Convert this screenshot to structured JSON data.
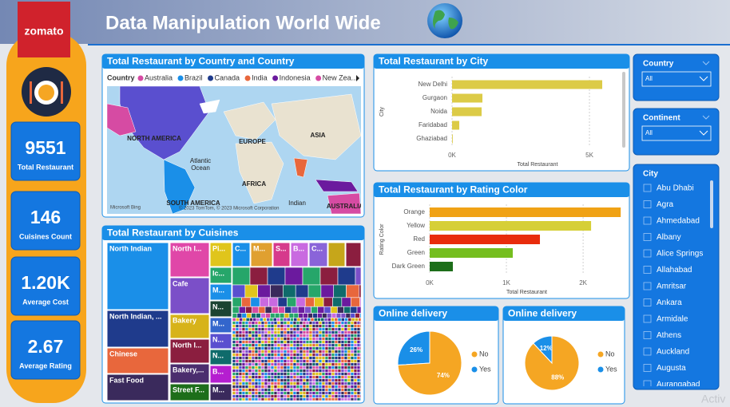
{
  "header": {
    "logo": "zomato",
    "title": "Data Manipulation World Wide"
  },
  "kpis": [
    {
      "value": 9551,
      "label": "Total Restaurant"
    },
    {
      "value": 146,
      "label": "Cuisines Count"
    },
    {
      "value": "1.20K",
      "label": "Average Cost"
    },
    {
      "value": 2.67,
      "label": "Average Rating"
    }
  ],
  "map": {
    "title": "Total Restaurant by Country and Country",
    "legend_title": "Country",
    "legend": [
      {
        "name": "Australia",
        "color": "#d64ba3"
      },
      {
        "name": "Brazil",
        "color": "#1a8fe8"
      },
      {
        "name": "Canada",
        "color": "#1f3b8c"
      },
      {
        "name": "India",
        "color": "#e8673c"
      },
      {
        "name": "Indonesia",
        "color": "#6b1a9e"
      },
      {
        "name": "New Zea...",
        "color": "#d64ba3"
      }
    ],
    "labels": [
      "NORTH AMERICA",
      "EUROPE",
      "ASIA",
      "Atlantic",
      "Ocean",
      "AFRICA",
      "SOUTH AMERICA",
      "Indian",
      "AUSTRALIA"
    ],
    "attribution": [
      "Microsoft Bing",
      "© 2023 TomTom, © 2023 Microsoft Corporation"
    ]
  },
  "treemap": {
    "title": "Total Restaurant by Cuisines",
    "labels": [
      "North Indian",
      "North I...",
      "Pi...",
      "C...",
      "M...",
      "S...",
      "B...",
      "C...",
      "Cafe",
      "Ic...",
      "M...",
      "N...",
      "North Indian, ...",
      "Bakery",
      "M...",
      "North I...",
      "N...",
      "B...",
      "Chinese",
      "Bakery,...",
      "Fast Food",
      "Street F...",
      "M..."
    ]
  },
  "chart_data": [
    {
      "type": "hbar",
      "title": "Total Restaurant by City",
      "categories": [
        "New Delhi",
        "Gurgaon",
        "Noida",
        "Faridabad",
        "Ghaziabad"
      ],
      "values": [
        5465,
        1105,
        1075,
        262,
        25
      ],
      "color": "#dccb47",
      "x_label": "Total Restaurant",
      "y_label": "City",
      "xlim": [
        0,
        6220
      ],
      "xticks": [
        {
          "value": 0,
          "label": "0K"
        },
        {
          "value": 5000,
          "label": "5K"
        }
      ],
      "grid": true
    },
    {
      "type": "hbar",
      "title": "Total Restaurant by Rating Color",
      "categories": [
        "Orange",
        "Yellow",
        "Red",
        "Green",
        "Dark Green"
      ],
      "values": [
        2490,
        2104,
        1437,
        1083,
        302
      ],
      "colors": [
        "#f0a215",
        "#d6cf37",
        "#e82c0c",
        "#75be1f",
        "#1d6e1a"
      ],
      "x_label": "Total Restaurant",
      "y_label": "Rating Color",
      "xlim": [
        0,
        2530
      ],
      "xticks": [
        {
          "value": 0,
          "label": "0K"
        },
        {
          "value": 1000,
          "label": "1K"
        },
        {
          "value": 2000,
          "label": "2K"
        }
      ],
      "grid": true
    },
    {
      "type": "pie",
      "title": "Online delivery",
      "categories": [
        "No",
        "Yes"
      ],
      "values": [
        74,
        26
      ],
      "value_labels": [
        "74%",
        "26%"
      ],
      "colors": [
        "#f5a623",
        "#1a8fe8"
      ]
    },
    {
      "type": "pie",
      "title": "Online delivery",
      "categories": [
        "No",
        "Yes"
      ],
      "values": [
        88,
        12
      ],
      "value_labels": [
        "88%",
        "12%"
      ],
      "colors": [
        "#f5a623",
        "#1a8fe8"
      ]
    }
  ],
  "slicers": [
    {
      "title": "Country",
      "selected": "All"
    },
    {
      "title": "Continent",
      "selected": "All"
    },
    {
      "title": "City",
      "items": [
        "Abu Dhabi",
        "Agra",
        "Ahmedabad",
        "Albany",
        "Alice Springs",
        "Allahabad",
        "Amritsar",
        "Ankara",
        "Armidale",
        "Athens",
        "Auckland",
        "Augusta",
        "Aurangabad"
      ]
    }
  ],
  "watermark": "Activ"
}
